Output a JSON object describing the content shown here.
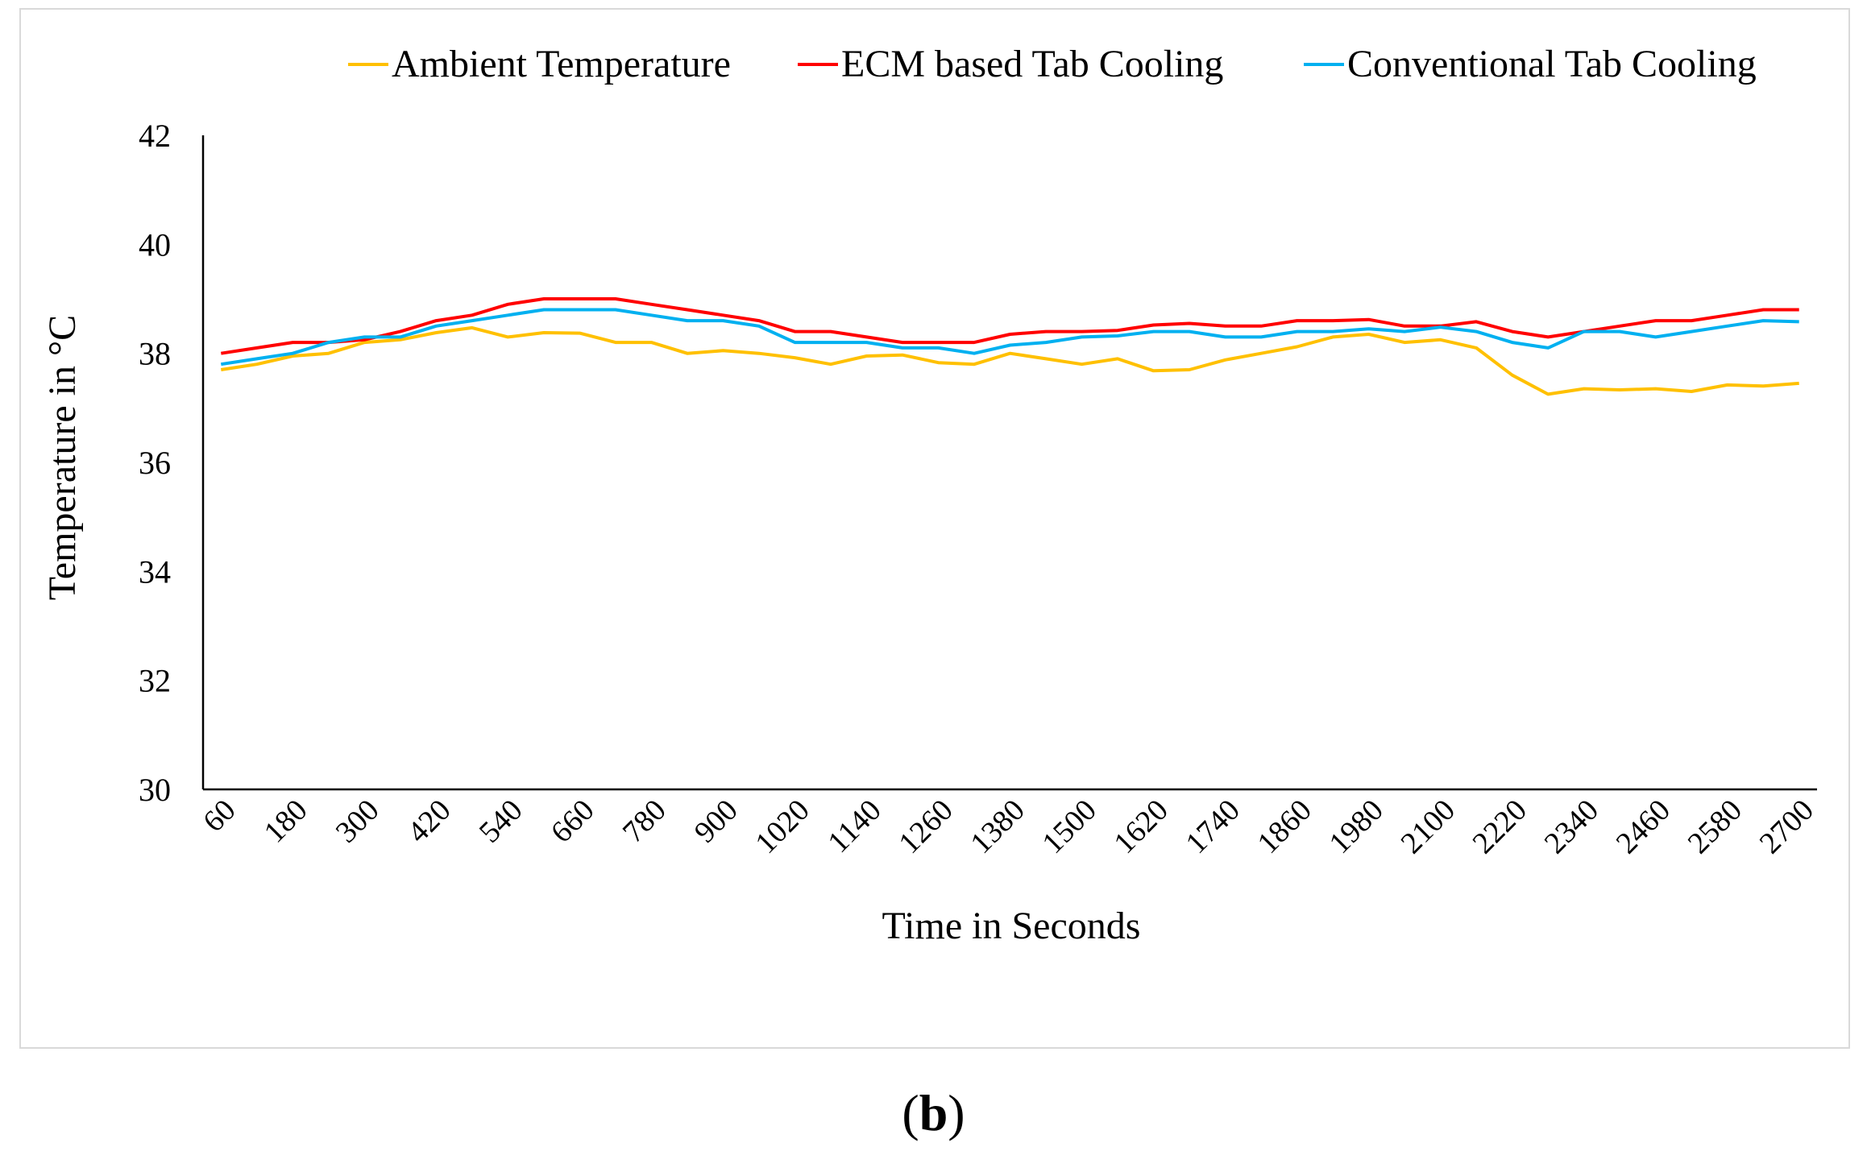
{
  "figure": {
    "caption_open": "(",
    "caption_letter": "b",
    "caption_close": ")"
  },
  "chart_data": {
    "type": "line",
    "title": "",
    "xlabel": "Time in Seconds",
    "ylabel": "Temperature in °C",
    "ylim": [
      30,
      42
    ],
    "yticks": [
      30,
      32,
      34,
      36,
      38,
      40,
      42
    ],
    "grid": false,
    "legend_position": "top-right",
    "x": [
      60,
      120,
      180,
      240,
      300,
      360,
      420,
      480,
      540,
      600,
      660,
      720,
      780,
      840,
      900,
      960,
      1020,
      1080,
      1140,
      1200,
      1260,
      1320,
      1380,
      1440,
      1500,
      1560,
      1620,
      1680,
      1740,
      1800,
      1860,
      1920,
      1980,
      2040,
      2100,
      2160,
      2220,
      2280,
      2340,
      2400,
      2460,
      2520,
      2580,
      2640,
      2700
    ],
    "xtick_labels": [
      "60",
      "180",
      "300",
      "420",
      "540",
      "660",
      "780",
      "900",
      "1020",
      "1140",
      "1260",
      "1380",
      "1500",
      "1620",
      "1740",
      "1860",
      "1980",
      "2100",
      "2220",
      "2340",
      "2460",
      "2580",
      "2700"
    ],
    "series": [
      {
        "name": "Ambient Temperature",
        "color": "#FFC000",
        "values": [
          37.7,
          37.8,
          37.95,
          38.0,
          38.2,
          38.25,
          38.38,
          38.47,
          38.3,
          38.38,
          38.37,
          38.2,
          38.2,
          38.0,
          38.05,
          38.0,
          37.92,
          37.8,
          37.95,
          37.97,
          37.83,
          37.8,
          38.0,
          37.9,
          37.8,
          37.9,
          37.68,
          37.7,
          37.88,
          38.0,
          38.12,
          38.3,
          38.35,
          38.2,
          38.25,
          38.1,
          37.6,
          37.25,
          37.35,
          37.33,
          37.35,
          37.3,
          37.42,
          37.4,
          37.45
        ]
      },
      {
        "name": "ECM based Tab Cooling",
        "color": "#FF0000",
        "values": [
          38.0,
          38.1,
          38.2,
          38.2,
          38.25,
          38.4,
          38.6,
          38.7,
          38.9,
          39.0,
          39.0,
          39.0,
          38.9,
          38.8,
          38.7,
          38.6,
          38.4,
          38.4,
          38.3,
          38.2,
          38.2,
          38.2,
          38.35,
          38.4,
          38.4,
          38.42,
          38.52,
          38.55,
          38.5,
          38.5,
          38.6,
          38.6,
          38.62,
          38.5,
          38.5,
          38.58,
          38.4,
          38.3,
          38.4,
          38.5,
          38.6,
          38.6,
          38.7,
          38.8,
          38.8
        ]
      },
      {
        "name": "Conventional Tab Cooling",
        "color": "#00B0F0",
        "values": [
          37.8,
          37.9,
          38.0,
          38.2,
          38.3,
          38.3,
          38.5,
          38.6,
          38.7,
          38.8,
          38.8,
          38.8,
          38.7,
          38.6,
          38.6,
          38.5,
          38.2,
          38.2,
          38.2,
          38.1,
          38.1,
          38.0,
          38.15,
          38.2,
          38.3,
          38.32,
          38.4,
          38.4,
          38.3,
          38.3,
          38.4,
          38.4,
          38.45,
          38.4,
          38.48,
          38.4,
          38.2,
          38.1,
          38.4,
          38.4,
          38.3,
          38.4,
          38.5,
          38.6,
          38.58
        ]
      }
    ]
  }
}
